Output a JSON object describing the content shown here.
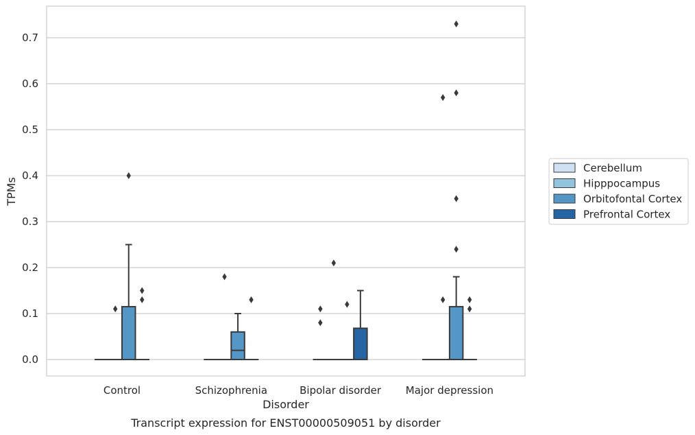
{
  "chart_data": {
    "type": "box",
    "xlabel": "Disorder",
    "ylabel": "TPMs",
    "caption": "Transcript expression for ENST00000509051 by disorder",
    "categories": [
      "Control",
      "Schizophrenia",
      "Bipolar disorder",
      "Major depression"
    ],
    "ylim": [
      -0.035,
      0.77
    ],
    "yticks": [
      0.0,
      0.1,
      0.2,
      0.3,
      0.4,
      0.5,
      0.6,
      0.7
    ],
    "ytick_labels": [
      "0.0",
      "0.1",
      "0.2",
      "0.3",
      "0.4",
      "0.5",
      "0.6",
      "0.7"
    ],
    "grid": true,
    "legend_position": "right",
    "series": [
      {
        "name": "Cerebellum",
        "color": "#cfe1f2",
        "boxes": [
          {
            "q1": 0,
            "median": 0,
            "q3": 0,
            "whisker_low": 0,
            "whisker_high": 0,
            "outliers": []
          },
          {
            "q1": 0,
            "median": 0,
            "q3": 0,
            "whisker_low": 0,
            "whisker_high": 0,
            "outliers": []
          },
          {
            "q1": 0,
            "median": 0,
            "q3": 0,
            "whisker_low": 0,
            "whisker_high": 0,
            "outliers": [
              0.11,
              0.08
            ]
          },
          {
            "q1": 0,
            "median": 0,
            "q3": 0,
            "whisker_low": 0,
            "whisker_high": 0,
            "outliers": []
          }
        ]
      },
      {
        "name": "Hipppocampus",
        "color": "#93c4de",
        "boxes": [
          {
            "q1": 0,
            "median": 0,
            "q3": 0,
            "whisker_low": 0,
            "whisker_high": 0,
            "outliers": [
              0.11
            ]
          },
          {
            "q1": 0,
            "median": 0,
            "q3": 0,
            "whisker_low": 0,
            "whisker_high": 0,
            "outliers": [
              0.18
            ]
          },
          {
            "q1": 0,
            "median": 0,
            "q3": 0,
            "whisker_low": 0,
            "whisker_high": 0,
            "outliers": [
              0.21
            ]
          },
          {
            "q1": 0,
            "median": 0,
            "q3": 0,
            "whisker_low": 0,
            "whisker_high": 0,
            "outliers": [
              0.13,
              0.57
            ]
          }
        ]
      },
      {
        "name": "Orbitofontal Cortex",
        "color": "#5496c6",
        "boxes": [
          {
            "q1": 0,
            "median": 0,
            "q3": 0.115,
            "whisker_low": 0,
            "whisker_high": 0.25,
            "outliers": [
              0.4
            ]
          },
          {
            "q1": 0,
            "median": 0.02,
            "q3": 0.06,
            "whisker_low": 0,
            "whisker_high": 0.1,
            "outliers": []
          },
          {
            "q1": 0,
            "median": 0,
            "q3": 0,
            "whisker_low": 0,
            "whisker_high": 0,
            "outliers": [
              0.12
            ]
          },
          {
            "q1": 0,
            "median": 0,
            "q3": 0.115,
            "whisker_low": 0,
            "whisker_high": 0.18,
            "outliers": [
              0.24,
              0.35,
              0.58,
              0.73
            ]
          }
        ]
      },
      {
        "name": "Prefrontal Cortex",
        "color": "#2565a3",
        "boxes": [
          {
            "q1": 0,
            "median": 0,
            "q3": 0,
            "whisker_low": 0,
            "whisker_high": 0,
            "outliers": [
              0.15,
              0.13
            ]
          },
          {
            "q1": 0,
            "median": 0,
            "q3": 0,
            "whisker_low": 0,
            "whisker_high": 0,
            "outliers": [
              0.13
            ]
          },
          {
            "q1": 0,
            "median": 0,
            "q3": 0.068,
            "whisker_low": 0,
            "whisker_high": 0.15,
            "outliers": []
          },
          {
            "q1": 0,
            "median": 0,
            "q3": 0,
            "whisker_low": 0,
            "whisker_high": 0,
            "outliers": [
              0.13,
              0.11
            ]
          }
        ]
      }
    ]
  }
}
